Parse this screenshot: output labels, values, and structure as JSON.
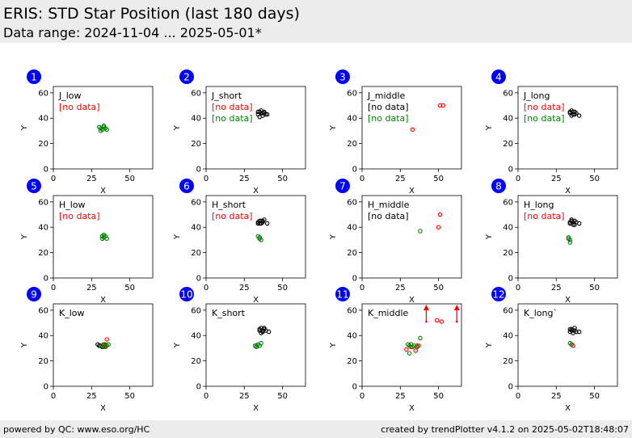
{
  "header": {
    "title": "ERIS: STD Star Position (last 180 days)",
    "subtitle": "Data range: 2024-11-04 ... 2025-05-01*"
  },
  "footer": {
    "left": "powered by QC: www.eso.org/HC",
    "right": "created by trendPlotter v4.1.2 on 2025-05-02T18:48:07"
  },
  "colors": {
    "badge": "#0000ff",
    "black_series": "#000000",
    "red_series": "#ff0000",
    "green_series": "#008000"
  },
  "chart_data": [
    {
      "type": "scatter",
      "index": "1",
      "label": "J_low",
      "xlabel": "X",
      "ylabel": "Y",
      "xlim": [
        0,
        65
      ],
      "ylim": [
        0,
        65
      ],
      "xticks": [
        0,
        25,
        50
      ],
      "yticks": [
        0,
        20,
        40,
        60
      ],
      "notes": [
        {
          "text": "[no data]",
          "color": "red"
        }
      ],
      "series": [
        {
          "color": "black",
          "points": []
        },
        {
          "color": "red",
          "points": []
        },
        {
          "color": "green",
          "points": [
            [
              30,
              33
            ],
            [
              31,
              32
            ],
            [
              32,
              31
            ],
            [
              33,
              33
            ],
            [
              34,
              32
            ],
            [
              35,
              31
            ],
            [
              31,
              30
            ],
            [
              33,
              34
            ]
          ]
        }
      ]
    },
    {
      "type": "scatter",
      "index": "2",
      "label": "J_short",
      "xlabel": "X",
      "ylabel": "Y",
      "xlim": [
        0,
        65
      ],
      "ylim": [
        0,
        65
      ],
      "xticks": [
        0,
        25,
        50
      ],
      "yticks": [
        0,
        20,
        40,
        60
      ],
      "notes": [
        {
          "text": "[no data]",
          "color": "red"
        },
        {
          "text": "[no data]",
          "color": "green"
        }
      ],
      "series": [
        {
          "color": "black",
          "points": [
            [
              34,
              43
            ],
            [
              35,
              45
            ],
            [
              36,
              44
            ],
            [
              37,
              42
            ],
            [
              38,
              45
            ],
            [
              39,
              43
            ],
            [
              36,
              46
            ],
            [
              35,
              41
            ],
            [
              37,
              44
            ],
            [
              40,
              43
            ],
            [
              34,
              45
            ],
            [
              38,
              44
            ]
          ]
        },
        {
          "color": "red",
          "points": []
        },
        {
          "color": "green",
          "points": []
        }
      ]
    },
    {
      "type": "scatter",
      "index": "3",
      "label": "J_middle",
      "xlabel": "X",
      "ylabel": "Y",
      "xlim": [
        0,
        65
      ],
      "ylim": [
        0,
        65
      ],
      "xticks": [
        0,
        25,
        50
      ],
      "yticks": [
        0,
        20,
        40,
        60
      ],
      "notes": [
        {
          "text": "[no data]",
          "color": "black"
        },
        {
          "text": "[no data]",
          "color": "green"
        }
      ],
      "series": [
        {
          "color": "black",
          "points": []
        },
        {
          "color": "red",
          "points": [
            [
              33,
              31
            ],
            [
              51,
              50
            ],
            [
              53,
              50
            ]
          ]
        },
        {
          "color": "green",
          "points": []
        }
      ]
    },
    {
      "type": "scatter",
      "index": "4",
      "label": "J_long",
      "xlabel": "X",
      "ylabel": "Y",
      "xlim": [
        0,
        65
      ],
      "ylim": [
        0,
        65
      ],
      "xticks": [
        0,
        25,
        50
      ],
      "yticks": [
        0,
        20,
        40,
        60
      ],
      "notes": [
        {
          "text": "[no data]",
          "color": "red"
        },
        {
          "text": "[no data]",
          "color": "green"
        }
      ],
      "series": [
        {
          "color": "black",
          "points": [
            [
              34,
              44
            ],
            [
              35,
              46
            ],
            [
              36,
              43
            ],
            [
              37,
              45
            ],
            [
              38,
              44
            ],
            [
              35,
              42
            ],
            [
              36,
              45
            ],
            [
              40,
              42
            ],
            [
              37,
              43
            ],
            [
              34,
              45
            ]
          ]
        },
        {
          "color": "red",
          "points": []
        },
        {
          "color": "green",
          "points": []
        }
      ]
    },
    {
      "type": "scatter",
      "index": "5",
      "label": "H_low",
      "xlabel": "X",
      "ylabel": "Y",
      "xlim": [
        0,
        65
      ],
      "ylim": [
        0,
        65
      ],
      "xticks": [
        0,
        25,
        50
      ],
      "yticks": [
        0,
        20,
        40,
        60
      ],
      "notes": [
        {
          "text": "[no data]",
          "color": "red"
        }
      ],
      "series": [
        {
          "color": "black",
          "points": []
        },
        {
          "color": "red",
          "points": []
        },
        {
          "color": "green",
          "points": [
            [
              32,
              33
            ],
            [
              33,
              32
            ],
            [
              34,
              33
            ],
            [
              32,
              31
            ],
            [
              33,
              34
            ],
            [
              35,
              31
            ]
          ]
        }
      ]
    },
    {
      "type": "scatter",
      "index": "6",
      "label": "H_short",
      "xlabel": "X",
      "ylabel": "Y",
      "xlim": [
        0,
        65
      ],
      "ylim": [
        0,
        65
      ],
      "xticks": [
        0,
        25,
        50
      ],
      "yticks": [
        0,
        20,
        40,
        60
      ],
      "notes": [
        {
          "text": "[no data]",
          "color": "red"
        }
      ],
      "series": [
        {
          "color": "black",
          "points": [
            [
              34,
              44
            ],
            [
              35,
              45
            ],
            [
              36,
              43
            ],
            [
              37,
              44
            ],
            [
              38,
              46
            ],
            [
              35,
              43
            ],
            [
              36,
              45
            ],
            [
              40,
              43
            ],
            [
              34,
              43
            ],
            [
              37,
              45
            ]
          ]
        },
        {
          "color": "red",
          "points": []
        },
        {
          "color": "green",
          "points": [
            [
              34,
              33
            ],
            [
              35,
              31
            ],
            [
              36,
              30
            ],
            [
              35,
              32
            ]
          ]
        }
      ]
    },
    {
      "type": "scatter",
      "index": "7",
      "label": "H_middle",
      "xlabel": "X",
      "ylabel": "Y",
      "xlim": [
        0,
        65
      ],
      "ylim": [
        0,
        65
      ],
      "xticks": [
        0,
        25,
        50
      ],
      "yticks": [
        0,
        20,
        40,
        60
      ],
      "notes": [
        {
          "text": "[no data]",
          "color": "black"
        }
      ],
      "series": [
        {
          "color": "black",
          "points": []
        },
        {
          "color": "red",
          "points": [
            [
              50,
              40
            ],
            [
              51,
              50
            ]
          ]
        },
        {
          "color": "green",
          "points": [
            [
              38,
              37
            ]
          ]
        }
      ]
    },
    {
      "type": "scatter",
      "index": "8",
      "label": "H_long",
      "xlabel": "X",
      "ylabel": "Y",
      "xlim": [
        0,
        65
      ],
      "ylim": [
        0,
        65
      ],
      "xticks": [
        0,
        25,
        50
      ],
      "yticks": [
        0,
        20,
        40,
        60
      ],
      "notes": [
        {
          "text": "[no data]",
          "color": "red"
        }
      ],
      "series": [
        {
          "color": "black",
          "points": [
            [
              34,
              43
            ],
            [
              35,
              45
            ],
            [
              36,
              44
            ],
            [
              37,
              42
            ],
            [
              38,
              44
            ],
            [
              35,
              46
            ],
            [
              36,
              42
            ],
            [
              40,
              43
            ],
            [
              34,
              44
            ],
            [
              37,
              45
            ]
          ]
        },
        {
          "color": "red",
          "points": []
        },
        {
          "color": "green",
          "points": [
            [
              33,
              32
            ],
            [
              34,
              30
            ],
            [
              34,
              28
            ],
            [
              33,
              31
            ]
          ]
        }
      ]
    },
    {
      "type": "scatter",
      "index": "9",
      "label": "K_low",
      "xlabel": "X",
      "ylabel": "Y",
      "xlim": [
        0,
        65
      ],
      "ylim": [
        0,
        65
      ],
      "xticks": [
        0,
        25,
        50
      ],
      "yticks": [
        0,
        20,
        40,
        60
      ],
      "notes": [],
      "series": [
        {
          "color": "black",
          "points": [
            [
              29,
              33
            ],
            [
              31,
              32
            ],
            [
              32,
              31
            ],
            [
              33,
              33
            ],
            [
              34,
              32
            ],
            [
              30,
              32
            ]
          ]
        },
        {
          "color": "red",
          "points": [
            [
              35,
              37
            ],
            [
              33,
              33
            ],
            [
              34,
              31
            ]
          ]
        },
        {
          "color": "green",
          "points": [
            [
              32,
              32
            ],
            [
              33,
              31
            ],
            [
              34,
              33
            ],
            [
              35,
              32
            ],
            [
              36,
              33
            ]
          ]
        }
      ]
    },
    {
      "type": "scatter",
      "index": "10",
      "label": "K_short",
      "xlabel": "X",
      "ylabel": "Y",
      "xlim": [
        0,
        65
      ],
      "ylim": [
        0,
        65
      ],
      "xticks": [
        0,
        25,
        50
      ],
      "yticks": [
        0,
        20,
        40,
        60
      ],
      "notes": [],
      "series": [
        {
          "color": "black",
          "points": [
            [
              35,
              44
            ],
            [
              36,
              46
            ],
            [
              37,
              43
            ],
            [
              38,
              45
            ],
            [
              39,
              44
            ],
            [
              36,
              42
            ],
            [
              35,
              45
            ],
            [
              41,
              43
            ],
            [
              37,
              44
            ],
            [
              38,
              46
            ]
          ]
        },
        {
          "color": "red",
          "points": []
        },
        {
          "color": "green",
          "points": [
            [
              32,
              32
            ],
            [
              33,
              31
            ],
            [
              34,
              33
            ],
            [
              35,
              32
            ],
            [
              36,
              34
            ],
            [
              33,
              32
            ]
          ]
        }
      ]
    },
    {
      "type": "scatter",
      "index": "11",
      "label": "K_middle",
      "xlabel": "X",
      "ylabel": "Y",
      "xlim": [
        0,
        65
      ],
      "ylim": [
        0,
        65
      ],
      "xticks": [
        0,
        25,
        50
      ],
      "yticks": [
        0,
        20,
        40,
        60
      ],
      "notes": [],
      "series": [
        {
          "color": "black",
          "points": []
        },
        {
          "color": "red",
          "points": [
            [
              29,
              29
            ],
            [
              32,
              31
            ],
            [
              35,
              28
            ],
            [
              36,
              32
            ],
            [
              37,
              32
            ],
            [
              49,
              52
            ],
            [
              52,
              51
            ]
          ]
        },
        {
          "color": "green",
          "points": [
            [
              30,
              33
            ],
            [
              31,
              32
            ],
            [
              32,
              33
            ],
            [
              33,
              31
            ],
            [
              34,
              32
            ],
            [
              38,
              38
            ],
            [
              31,
              26
            ],
            [
              36,
              31
            ]
          ]
        }
      ],
      "outliers": [
        {
          "x": 42,
          "color": "red"
        },
        {
          "x": 62,
          "color": "red"
        }
      ]
    },
    {
      "type": "scatter",
      "index": "12",
      "label": "K_long`",
      "xlabel": "X",
      "ylabel": "Y",
      "xlim": [
        0,
        65
      ],
      "ylim": [
        0,
        65
      ],
      "xticks": [
        0,
        25,
        50
      ],
      "yticks": [
        0,
        20,
        40,
        60
      ],
      "notes": [],
      "series": [
        {
          "color": "black",
          "points": [
            [
              34,
              43
            ],
            [
              35,
              45
            ],
            [
              36,
              44
            ],
            [
              37,
              46
            ],
            [
              38,
              43
            ],
            [
              36,
              42
            ],
            [
              35,
              44
            ],
            [
              40,
              43
            ],
            [
              34,
              45
            ],
            [
              37,
              44
            ]
          ]
        },
        {
          "color": "red",
          "points": [
            [
              35,
              33
            ],
            [
              36,
              32
            ]
          ]
        },
        {
          "color": "green",
          "points": [
            [
              34,
              34
            ],
            [
              35,
              33
            ]
          ]
        }
      ]
    }
  ]
}
